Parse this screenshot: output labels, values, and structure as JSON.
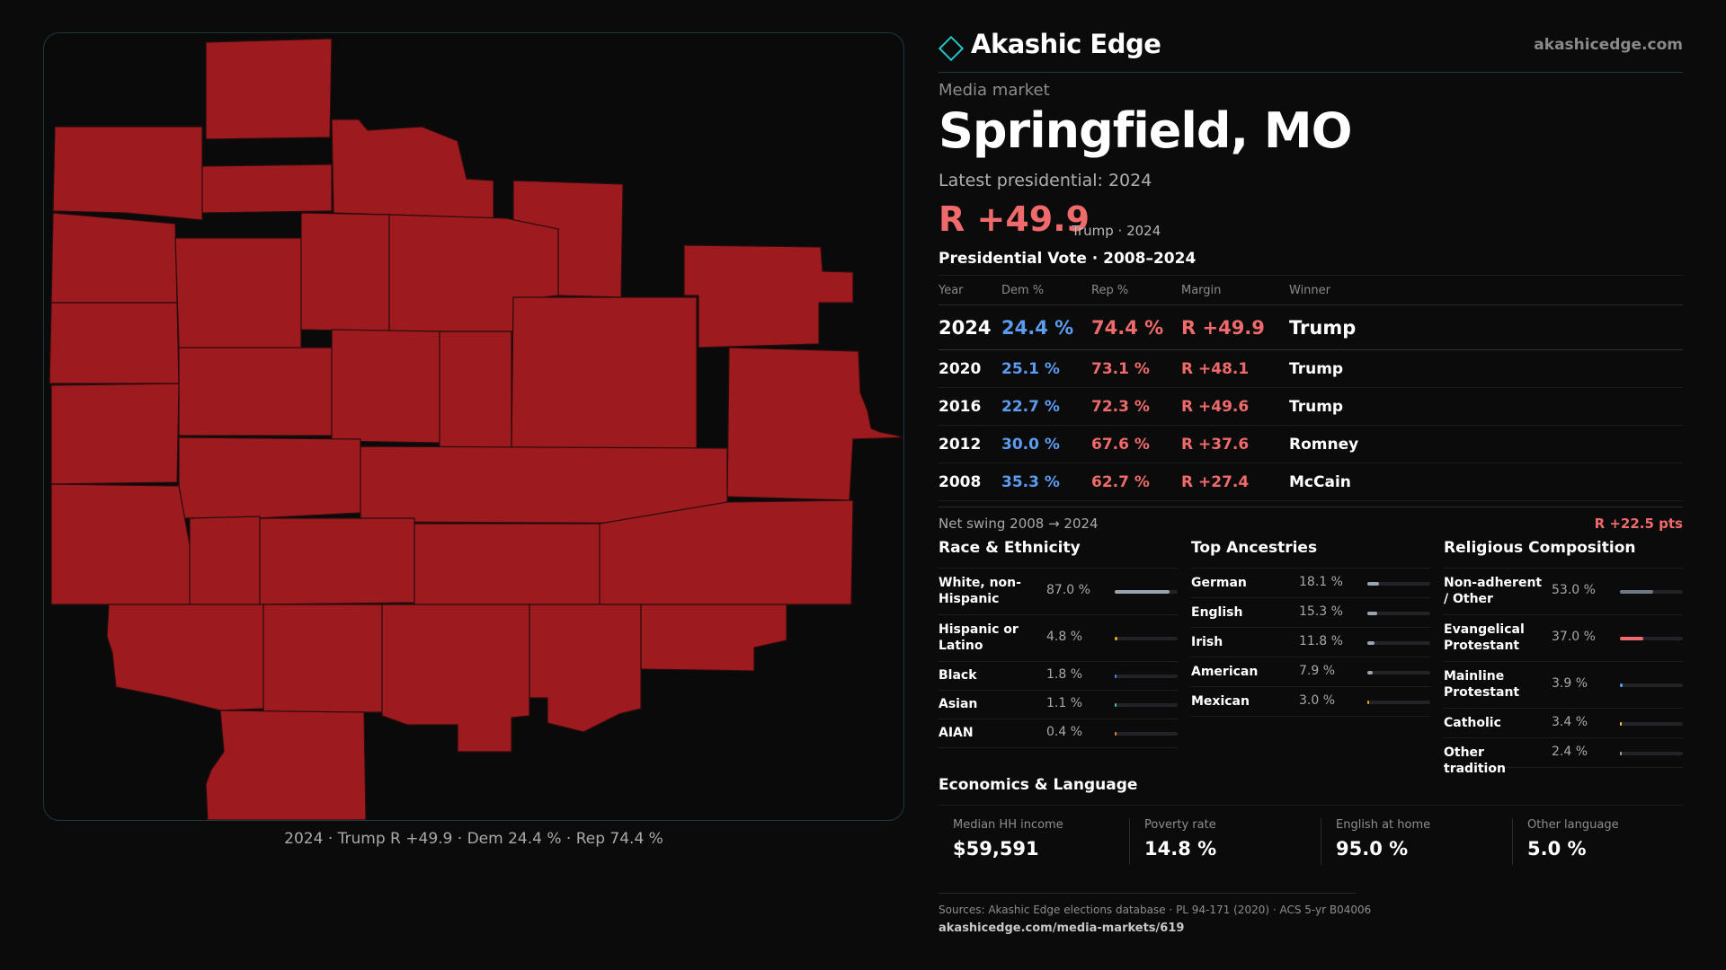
{
  "brand": {
    "name": "Akashic Edge",
    "url": "akashicedge.com",
    "accent": "#22c5c8"
  },
  "market": {
    "eyebrow": "Media market",
    "title": "Springfield, MO",
    "latest": "Latest presidential: 2024",
    "margin": "R +49.9",
    "margin_sub": "Trump · 2024"
  },
  "map": {
    "caption": "2024 · Trump R +49.9 · Dem 24.4 % · Rep 74.4 %",
    "fill_color": "#9d1a1e"
  },
  "votes": {
    "title": "Presidential Vote · 2008–2024",
    "headers": [
      "Year",
      "Dem %",
      "Rep %",
      "Margin",
      "Winner"
    ],
    "rows": [
      {
        "year": "2024",
        "dem": "24.4 %",
        "rep": "74.4 %",
        "margin": "R +49.9",
        "winner": "Trump"
      },
      {
        "year": "2020",
        "dem": "25.1 %",
        "rep": "73.1 %",
        "margin": "R +48.1",
        "winner": "Trump"
      },
      {
        "year": "2016",
        "dem": "22.7 %",
        "rep": "72.3 %",
        "margin": "R +49.6",
        "winner": "Trump"
      },
      {
        "year": "2012",
        "dem": "30.0 %",
        "rep": "67.6 %",
        "margin": "R +37.6",
        "winner": "Romney"
      },
      {
        "year": "2008",
        "dem": "35.3 %",
        "rep": "62.7 %",
        "margin": "R +27.4",
        "winner": "McCain"
      }
    ],
    "dem_color": "#5b9cf0",
    "rep_color": "#ef6a6a"
  },
  "swing": {
    "label": "Net swing 2008 → 2024",
    "value": "R +22.5 pts"
  },
  "race": {
    "title": "Race & Ethnicity",
    "rows": [
      {
        "label": "White, non-Hispanic",
        "value": "87.0 %",
        "pct": 87.0,
        "color": "#9aa3b0"
      },
      {
        "label": "Hispanic or Latino",
        "value": "4.8 %",
        "pct": 4.8,
        "color": "#f0a020"
      },
      {
        "label": "Black",
        "value": "1.8 %",
        "pct": 1.8,
        "color": "#6a78ff"
      },
      {
        "label": "Asian",
        "value": "1.1 %",
        "pct": 1.1,
        "color": "#38c0c0"
      },
      {
        "label": "AIAN",
        "value": "0.4 %",
        "pct": 0.4,
        "color": "#f08030"
      }
    ]
  },
  "ancestry": {
    "title": "Top Ancestries",
    "rows": [
      {
        "label": "German",
        "value": "18.1 %",
        "pct": 18.1,
        "color": "#9aa3b0"
      },
      {
        "label": "English",
        "value": "15.3 %",
        "pct": 15.3,
        "color": "#9aa3b0"
      },
      {
        "label": "Irish",
        "value": "11.8 %",
        "pct": 11.8,
        "color": "#9aa3b0"
      },
      {
        "label": "American",
        "value": "7.9 %",
        "pct": 7.9,
        "color": "#9aa3b0"
      },
      {
        "label": "Mexican",
        "value": "3.0 %",
        "pct": 3.0,
        "color": "#f0a020"
      }
    ]
  },
  "religion": {
    "title": "Religious Composition",
    "rows": [
      {
        "label": "Non-adherent / Other",
        "value": "53.0 %",
        "pct": 53.0,
        "color": "#6e7888"
      },
      {
        "label": "Evangelical Protestant",
        "value": "37.0 %",
        "pct": 37.0,
        "color": "#ef6a6a"
      },
      {
        "label": "Mainline Protestant",
        "value": "3.9 %",
        "pct": 3.9,
        "color": "#5b9cf0"
      },
      {
        "label": "Catholic",
        "value": "3.4 %",
        "pct": 3.4,
        "color": "#f0c040"
      },
      {
        "label": "Other tradition",
        "value": "2.4 %",
        "pct": 2.4,
        "color": "#9aa3b0"
      }
    ]
  },
  "economics": {
    "title": "Economics & Language",
    "cells": [
      {
        "label": "Median HH income",
        "value": "$59,591"
      },
      {
        "label": "Poverty rate",
        "value": "14.8 %"
      },
      {
        "label": "English at home",
        "value": "95.0 %"
      },
      {
        "label": "Other language",
        "value": "5.0 %"
      }
    ]
  },
  "sources": {
    "text": "Sources: Akashic Edge elections database · PL 94-171 (2020) · ACS 5-yr B04006",
    "url": "akashicedge.com/media-markets/619"
  }
}
